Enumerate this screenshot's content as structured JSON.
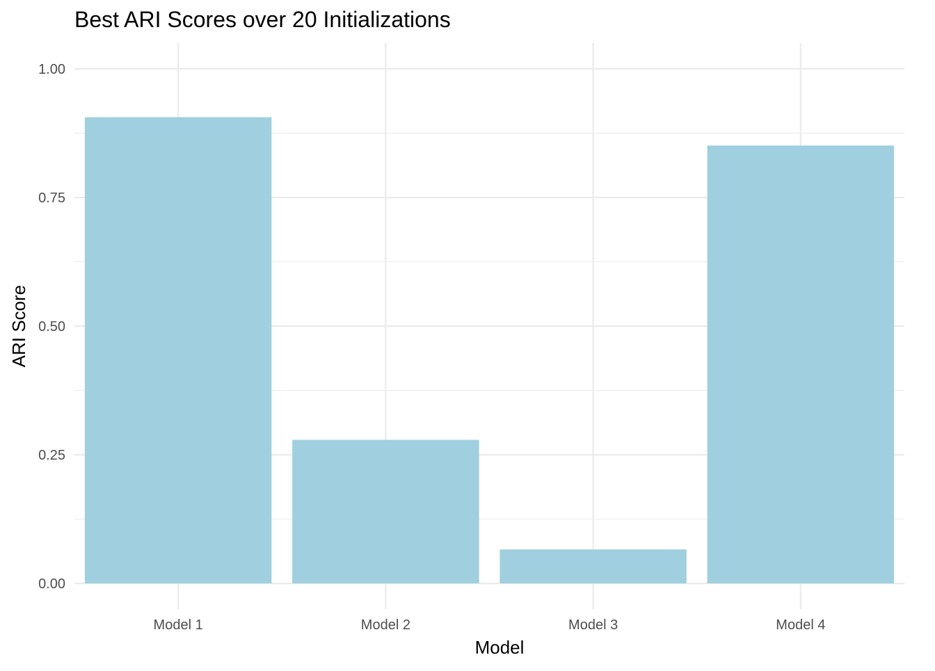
{
  "chart_data": {
    "type": "bar",
    "title": "Best ARI Scores over 20 Initializations",
    "xlabel": "Model",
    "ylabel": "ARI Score",
    "categories": [
      "Model 1",
      "Model 2",
      "Model 3",
      "Model 4"
    ],
    "values": [
      0.906,
      0.279,
      0.066,
      0.851
    ],
    "ylim": [
      -0.05,
      1.05
    ],
    "yticks": [
      0,
      0.25,
      0.5,
      0.75,
      1
    ],
    "ytick_labels": [
      "0.00",
      "0.25",
      "0.50",
      "0.75",
      "1.00"
    ],
    "grid": true,
    "legend": "none",
    "colors": {
      "bar": "#a0cfdf",
      "grid": "#ebebeb",
      "tick_text": "#4d4d4d",
      "text": "#000000"
    }
  }
}
